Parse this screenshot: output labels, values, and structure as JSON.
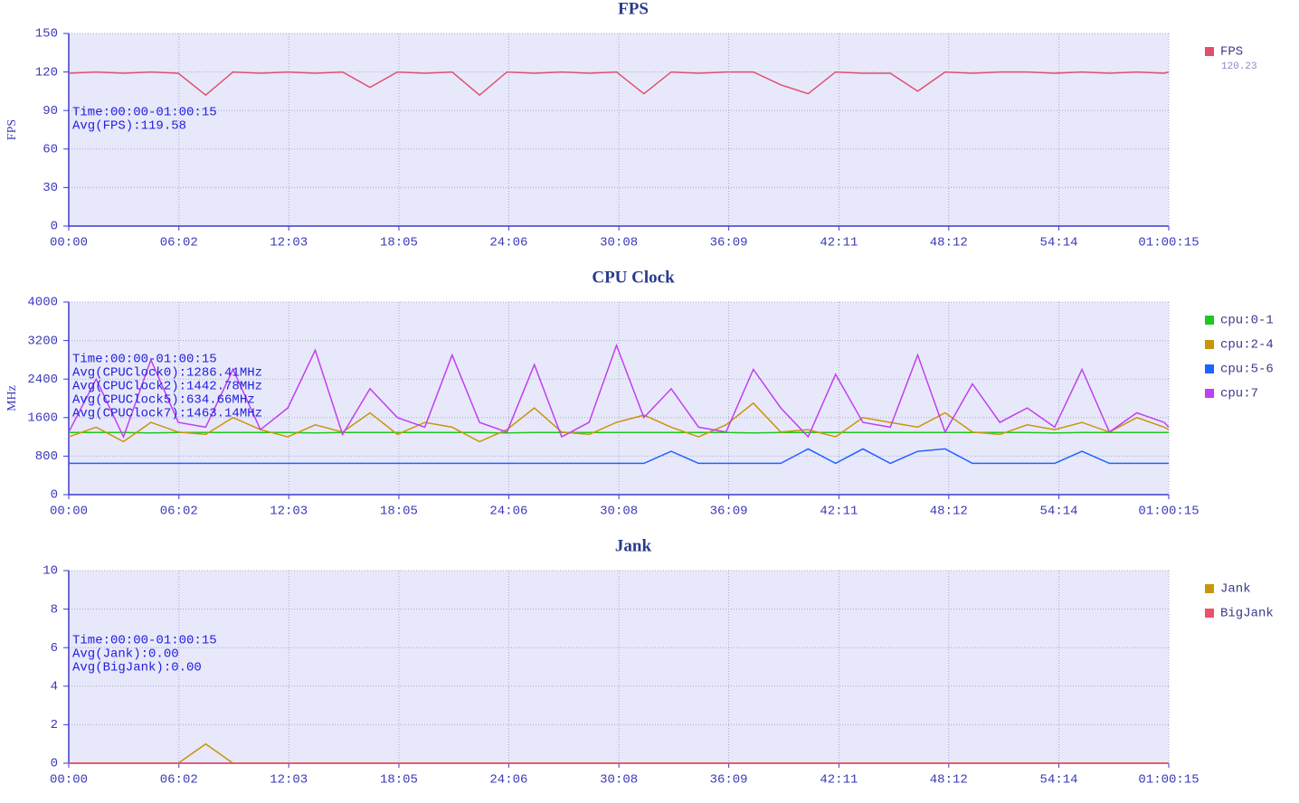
{
  "chart_data": [
    {
      "type": "line",
      "title": "FPS",
      "y_label": "FPS",
      "legend": "right",
      "grid": true,
      "annotations": [
        "Time:00:00-01:00:15",
        "Avg(FPS):119.58"
      ],
      "x": [
        0,
        90,
        180,
        270,
        360,
        450,
        540,
        630,
        720,
        810,
        900,
        990,
        1080,
        1170,
        1260,
        1350,
        1440,
        1530,
        1620,
        1710,
        1800,
        1890,
        1980,
        2070,
        2160,
        2250,
        2340,
        2430,
        2520,
        2610,
        2700,
        2790,
        2880,
        2970,
        3060,
        3150,
        3240,
        3330,
        3420,
        3510,
        3600,
        3615
      ],
      "xlim": [
        0,
        3615
      ],
      "xticks": [
        {
          "value": 0,
          "label": "00:00"
        },
        {
          "value": 362,
          "label": "06:02"
        },
        {
          "value": 723,
          "label": "12:03"
        },
        {
          "value": 1085,
          "label": "18:05"
        },
        {
          "value": 1446,
          "label": "24:06"
        },
        {
          "value": 1808,
          "label": "30:08"
        },
        {
          "value": 2169,
          "label": "36:09"
        },
        {
          "value": 2531,
          "label": "42:11"
        },
        {
          "value": 2892,
          "label": "48:12"
        },
        {
          "value": 3254,
          "label": "54:14"
        },
        {
          "value": 3615,
          "label": "01:00:15"
        }
      ],
      "ylim": [
        0,
        150
      ],
      "yticks": [
        0,
        30,
        60,
        90,
        120,
        150
      ],
      "series": [
        {
          "name": "FPS",
          "color": "#e0506e",
          "legend_value": 120.23,
          "values": [
            119,
            120,
            119,
            120,
            119,
            102,
            120,
            119,
            120,
            119,
            120,
            108,
            120,
            119,
            120,
            102,
            120,
            119,
            120,
            119,
            120,
            103,
            120,
            119,
            120,
            120,
            110,
            103,
            120,
            119,
            119,
            105,
            120,
            119,
            120,
            120,
            119,
            120,
            119,
            120,
            119,
            120
          ]
        }
      ]
    },
    {
      "type": "line",
      "title": "CPU Clock",
      "y_label": "MHz",
      "legend": "right",
      "grid": true,
      "annotations": [
        "Time:00:00-01:00:15",
        "Avg(CPUClock0):1286.41MHz",
        "Avg(CPUClock2):1442.78MHz",
        "Avg(CPUClock5):634.66MHz",
        "Avg(CPUClock7):1463.14MHz"
      ],
      "x": [
        0,
        90,
        180,
        270,
        360,
        450,
        540,
        630,
        720,
        810,
        900,
        990,
        1080,
        1170,
        1260,
        1350,
        1440,
        1530,
        1620,
        1710,
        1800,
        1890,
        1980,
        2070,
        2160,
        2250,
        2340,
        2430,
        2520,
        2610,
        2700,
        2790,
        2880,
        2970,
        3060,
        3150,
        3240,
        3330,
        3420,
        3510,
        3600,
        3615
      ],
      "xlim": [
        0,
        3615
      ],
      "xticks": [
        {
          "value": 0,
          "label": "00:00"
        },
        {
          "value": 362,
          "label": "06:02"
        },
        {
          "value": 723,
          "label": "12:03"
        },
        {
          "value": 1085,
          "label": "18:05"
        },
        {
          "value": 1446,
          "label": "24:06"
        },
        {
          "value": 1808,
          "label": "30:08"
        },
        {
          "value": 2169,
          "label": "36:09"
        },
        {
          "value": 2531,
          "label": "42:11"
        },
        {
          "value": 2892,
          "label": "48:12"
        },
        {
          "value": 3254,
          "label": "54:14"
        },
        {
          "value": 3615,
          "label": "01:00:15"
        }
      ],
      "ylim": [
        0,
        4000
      ],
      "yticks": [
        0,
        800,
        1600,
        2400,
        3200,
        4000
      ],
      "series": [
        {
          "name": "cpu:0-1",
          "color": "#1ec81e",
          "values": [
            1290,
            1290,
            1290,
            1280,
            1290,
            1290,
            1290,
            1290,
            1290,
            1280,
            1290,
            1290,
            1290,
            1290,
            1290,
            1290,
            1280,
            1290,
            1290,
            1290,
            1290,
            1290,
            1290,
            1290,
            1290,
            1280,
            1290,
            1290,
            1290,
            1290,
            1290,
            1290,
            1290,
            1290,
            1290,
            1290,
            1280,
            1290,
            1290,
            1290,
            1290,
            1290
          ]
        },
        {
          "name": "cpu:2-4",
          "color": "#c8960a",
          "values": [
            1200,
            1400,
            1100,
            1500,
            1300,
            1250,
            1600,
            1350,
            1200,
            1450,
            1300,
            1700,
            1250,
            1500,
            1400,
            1100,
            1350,
            1800,
            1300,
            1250,
            1500,
            1650,
            1400,
            1200,
            1450,
            1900,
            1300,
            1350,
            1200,
            1600,
            1500,
            1400,
            1700,
            1300,
            1250,
            1450,
            1350,
            1500,
            1300,
            1600,
            1400,
            1350
          ]
        },
        {
          "name": "cpu:5-6",
          "color": "#1e64ff",
          "values": [
            650,
            650,
            650,
            650,
            650,
            650,
            650,
            650,
            650,
            650,
            650,
            650,
            650,
            650,
            650,
            650,
            650,
            650,
            650,
            650,
            650,
            650,
            900,
            650,
            650,
            650,
            650,
            950,
            650,
            950,
            650,
            900,
            950,
            650,
            650,
            650,
            650,
            900,
            650,
            650,
            650,
            650
          ]
        },
        {
          "name": "cpu:7",
          "color": "#c040f0",
          "values": [
            1300,
            2400,
            1200,
            2800,
            1500,
            1400,
            2600,
            1350,
            1800,
            3000,
            1250,
            2200,
            1600,
            1400,
            2900,
            1500,
            1300,
            2700,
            1200,
            1500,
            3100,
            1600,
            2200,
            1400,
            1300,
            2600,
            1800,
            1200,
            2500,
            1500,
            1400,
            2900,
            1300,
            2300,
            1500,
            1800,
            1400,
            2600,
            1300,
            1700,
            1500,
            1400
          ]
        }
      ]
    },
    {
      "type": "line",
      "title": "Jank",
      "legend": "right",
      "grid": true,
      "annotations": [
        "Time:00:00-01:00:15",
        "Avg(Jank):0.00",
        "Avg(BigJank):0.00"
      ],
      "x": [
        0,
        90,
        180,
        270,
        360,
        450,
        540,
        630,
        720,
        810,
        900,
        990,
        1080,
        1170,
        1260,
        1350,
        1440,
        1530,
        1620,
        1710,
        1800,
        1890,
        1980,
        2070,
        2160,
        2250,
        2340,
        2430,
        2520,
        2610,
        2700,
        2790,
        2880,
        2970,
        3060,
        3150,
        3240,
        3330,
        3420,
        3510,
        3600,
        3615
      ],
      "xlim": [
        0,
        3615
      ],
      "xticks": [
        {
          "value": 0,
          "label": "00:00"
        },
        {
          "value": 362,
          "label": "06:02"
        },
        {
          "value": 723,
          "label": "12:03"
        },
        {
          "value": 1085,
          "label": "18:05"
        },
        {
          "value": 1446,
          "label": "24:06"
        },
        {
          "value": 1808,
          "label": "30:08"
        },
        {
          "value": 2169,
          "label": "36:09"
        },
        {
          "value": 2531,
          "label": "42:11"
        },
        {
          "value": 2892,
          "label": "48:12"
        },
        {
          "value": 3254,
          "label": "54:14"
        },
        {
          "value": 3615,
          "label": "01:00:15"
        }
      ],
      "ylim": [
        0,
        10
      ],
      "yticks": [
        0,
        2,
        4,
        6,
        8,
        10
      ],
      "series": [
        {
          "name": "Jank",
          "color": "#c8960a",
          "values": [
            0,
            0,
            0,
            0,
            0,
            1,
            0,
            0,
            0,
            0,
            0,
            0,
            0,
            0,
            0,
            0,
            0,
            0,
            0,
            0,
            0,
            0,
            0,
            0,
            0,
            0,
            0,
            0,
            0,
            0,
            0,
            0,
            0,
            0,
            0,
            0,
            0,
            0,
            0,
            0,
            0,
            0
          ]
        },
        {
          "name": "BigJank",
          "color": "#f04f65",
          "values": [
            0,
            0,
            0,
            0,
            0,
            0,
            0,
            0,
            0,
            0,
            0,
            0,
            0,
            0,
            0,
            0,
            0,
            0,
            0,
            0,
            0,
            0,
            0,
            0,
            0,
            0,
            0,
            0,
            0,
            0,
            0,
            0,
            0,
            0,
            0,
            0,
            0,
            0,
            0,
            0,
            0,
            0
          ]
        }
      ]
    }
  ]
}
